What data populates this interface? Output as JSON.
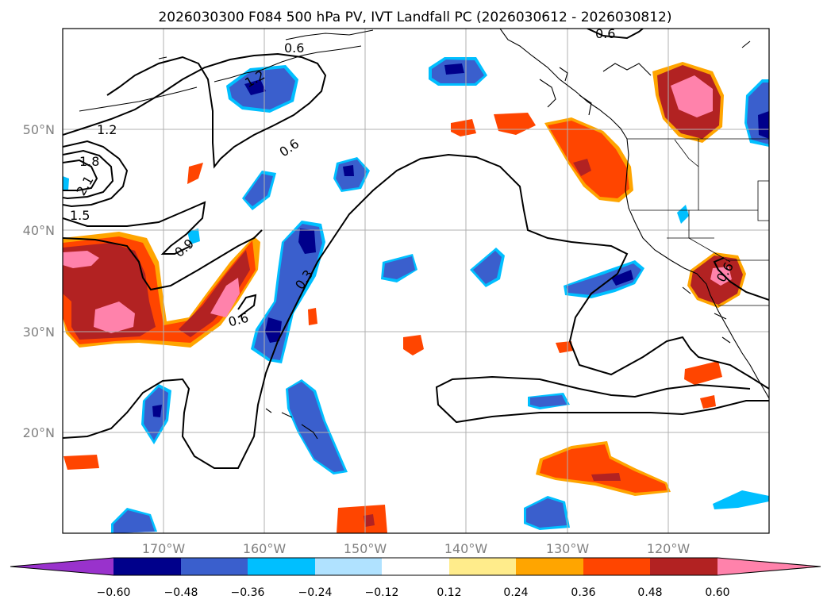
{
  "title": "2026030300 F084 500 hPa PV, IVT Landfall PC (2026030612 - 2026030812)",
  "map": {
    "lon_range": [
      -180,
      -110
    ],
    "lat_range": [
      10,
      60
    ],
    "lon_ticks": [
      {
        "value": -170,
        "label": "170°W"
      },
      {
        "value": -160,
        "label": "160°W"
      },
      {
        "value": -150,
        "label": "150°W"
      },
      {
        "value": -140,
        "label": "140°W"
      },
      {
        "value": -130,
        "label": "130°W"
      },
      {
        "value": -120,
        "label": "120°W"
      }
    ],
    "lat_ticks": [
      {
        "value": 20,
        "label": "20°N"
      },
      {
        "value": 30,
        "label": "30°N"
      },
      {
        "value": 40,
        "label": "40°N"
      },
      {
        "value": 50,
        "label": "50°N"
      }
    ],
    "contour_labels": [
      "0.6",
      "0.9",
      "1.2",
      "1.5",
      "1.8",
      "2.1",
      "0.3",
      "1.2"
    ]
  },
  "colorbar": {
    "ticks": [
      "−0.60",
      "−0.48",
      "−0.36",
      "−0.24",
      "−0.12",
      "0.12",
      "0.24",
      "0.36",
      "0.48",
      "0.60"
    ],
    "colors": [
      "#9932CC",
      "#00008B",
      "#3A5FCD",
      "#00BFFF",
      "#B0E2FF",
      "#FFFFFF",
      "#FFEC8B",
      "#FFA500",
      "#FF4500",
      "#B22222",
      "#FF82AB"
    ]
  },
  "colors": {
    "neg_strong": "#3A5FCD",
    "neg_core": "#00008B",
    "neg_edge": "#00BFFF",
    "pos_edge": "#FFA500",
    "pos_mid": "#FF4500",
    "pos_strong": "#B22222",
    "pos_core": "#FF82AB"
  }
}
